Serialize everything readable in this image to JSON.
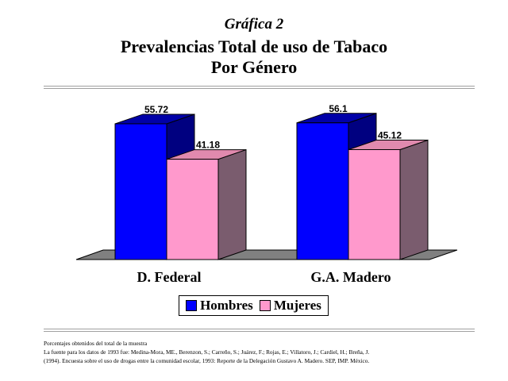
{
  "header": {
    "kicker": "Gráfica 2",
    "title_line1": "Prevalencias Total de uso de Tabaco",
    "title_line2": "Por Género"
  },
  "chart_data": {
    "type": "bar",
    "categories": [
      "D. Federal",
      "G.A. Madero"
    ],
    "series": [
      {
        "name": "Hombres",
        "values": [
          55.72,
          56.1
        ],
        "labels": [
          "55.72",
          "56.1"
        ],
        "color": "#0000ff",
        "side_color": "#000080",
        "top_color": "#0000a8"
      },
      {
        "name": "Mujeres",
        "values": [
          41.18,
          45.12
        ],
        "labels": [
          "41.18",
          "45.12"
        ],
        "color": "#ff99cc",
        "side_color": "#7a5c6e",
        "top_color": "#e08aae"
      }
    ],
    "floor_color": "#808080",
    "legend_position": "bottom",
    "grid": false
  },
  "footnote": {
    "line1": "Porcentajes obtenidos del total de la muestra",
    "line2": "La fuente para los datos de 1993 fue: Medina-Mora, ME., Berenzon, S.; Carreño, S.; Juárez, F.; Rojas, E.; Villatoro, J.; Cardiel, H.; Breña, J.",
    "line3": "(1994). Encuesta sobre el uso de drogas entre la comunidad escolar, 1993: Reporte de la Delegación Gustavo A. Madero. SEP, IMP. México."
  }
}
